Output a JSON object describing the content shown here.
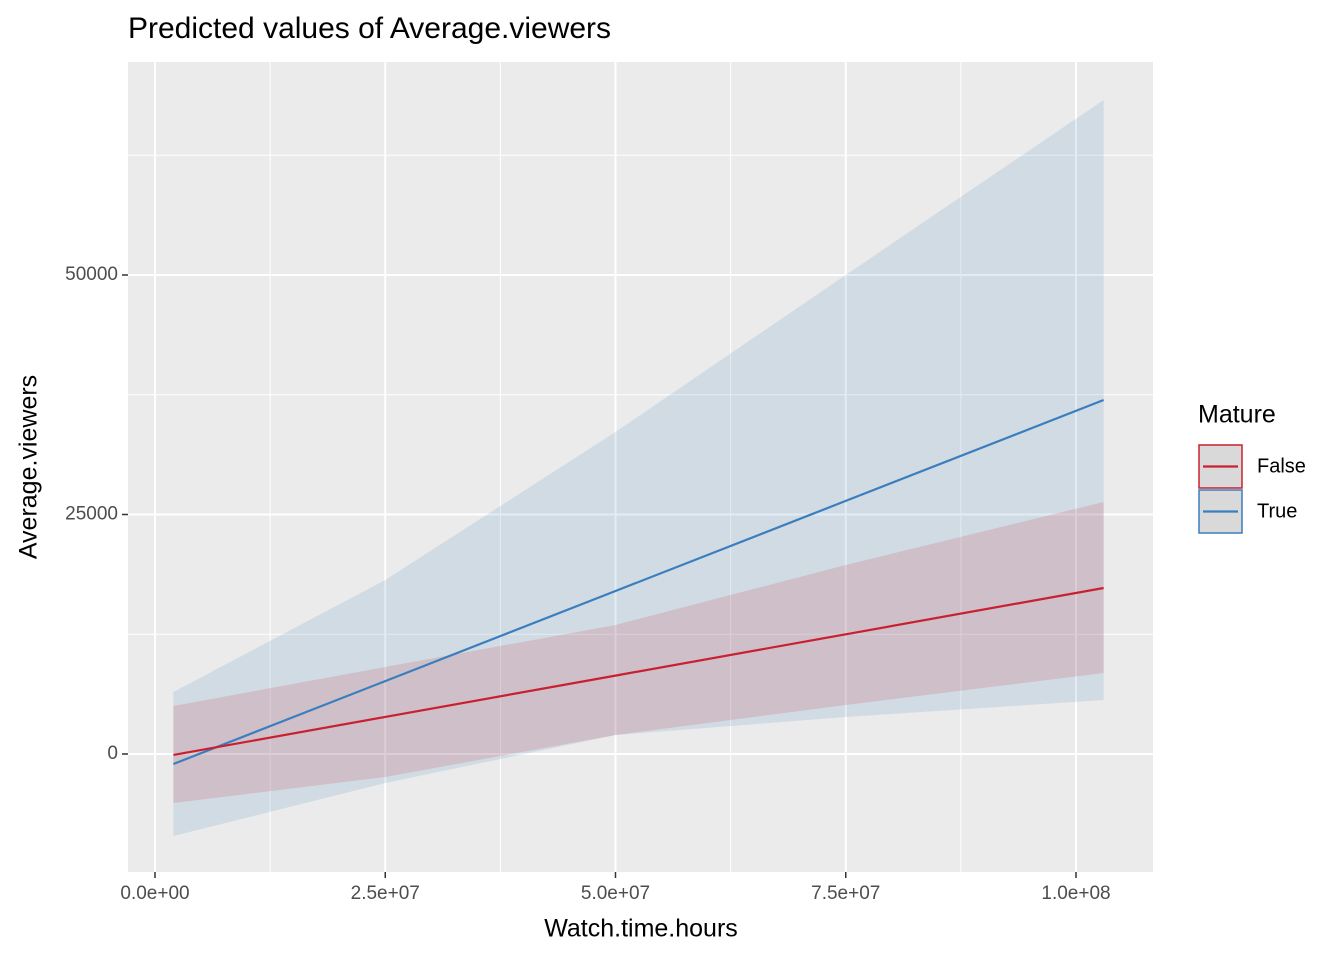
{
  "chart_data": {
    "type": "line",
    "title": "Predicted values of Average.viewers",
    "x_label": "Watch.time.hours",
    "y_label": "Average.viewers",
    "legend_title": "Mature",
    "x": [
      2000000,
      25000000,
      50000000,
      75000000,
      103000000
    ],
    "series": [
      {
        "name": "False",
        "color": "#c9202f",
        "values": [
          -100,
          3869,
          8183,
          12497,
          17328
        ],
        "lower": [
          -5115,
          -2401,
          1983,
          5115,
          8455
        ],
        "upper": [
          5010,
          9082,
          13466,
          19729,
          26305
        ]
      },
      {
        "name": "True",
        "color": "#3a7ebf",
        "values": [
          -1044,
          7609,
          17014,
          26419,
          36952
        ],
        "lower": [
          -8560,
          -3027,
          1983,
          3862,
          5637
        ],
        "upper": [
          6472,
          18163,
          33612,
          50000,
          68267
        ]
      }
    ],
    "xlim": [
      -2930000,
      108360000
    ],
    "ylim": [
      -12317,
      72234
    ],
    "xticks": [
      {
        "value": 0,
        "label": "0.0e+00"
      },
      {
        "value": 25000000,
        "label": "2.5e+07"
      },
      {
        "value": 50000000,
        "label": "5.0e+07"
      },
      {
        "value": 75000000,
        "label": "7.5e+07"
      },
      {
        "value": 100000000,
        "label": "1.0e+08"
      }
    ],
    "yticks": [
      0,
      25000,
      50000
    ],
    "grid": true,
    "legend": "right"
  }
}
